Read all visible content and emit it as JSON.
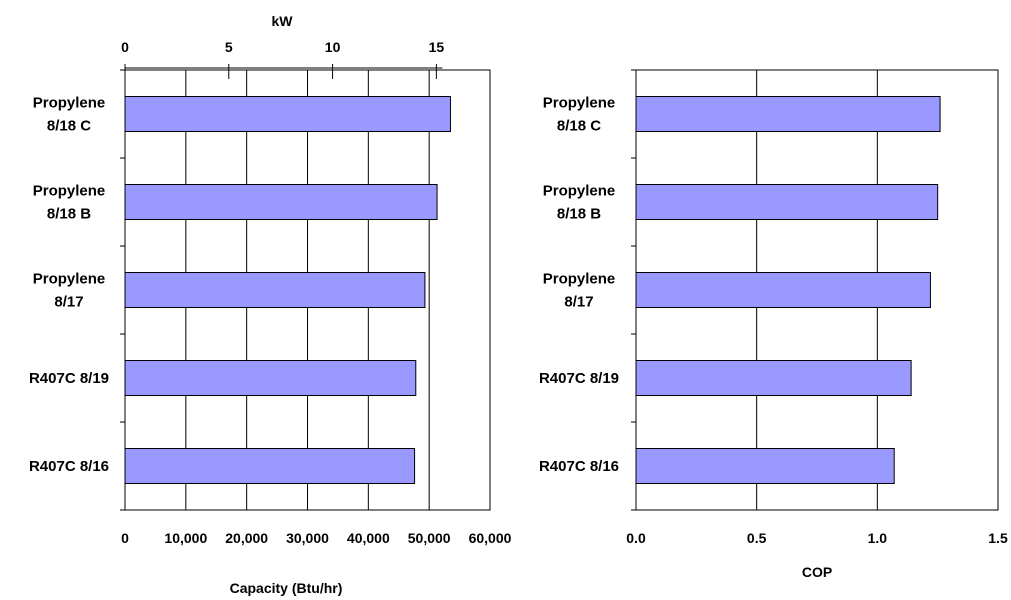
{
  "chart_data": [
    {
      "type": "bar",
      "orientation": "horizontal",
      "categories": [
        [
          "Propylene",
          "8/18 C"
        ],
        [
          "Propylene",
          "8/18 B"
        ],
        [
          "Propylene",
          "8/17"
        ],
        [
          "R407C 8/19"
        ],
        [
          "R407C 8/16"
        ]
      ],
      "values": [
        53500,
        51300,
        49300,
        47800,
        47600
      ],
      "xlabel": "Capacity (Btu/hr)",
      "xlim": [
        0,
        60000
      ],
      "xticks": [
        "0",
        "10,000",
        "20,000",
        "30,000",
        "40,000",
        "50,000",
        "60,000"
      ],
      "xtick_values": [
        0,
        10000,
        20000,
        30000,
        40000,
        50000,
        60000
      ],
      "secondary_axis": {
        "label": "kW",
        "position": "top",
        "ticks": [
          "0",
          "5",
          "10",
          "15"
        ],
        "tick_values": [
          0,
          5,
          10,
          15
        ],
        "btu_per_kw": 3412.14
      },
      "grid": "vertical",
      "bar_color": "#9999ff"
    },
    {
      "type": "bar",
      "orientation": "horizontal",
      "categories": [
        [
          "Propylene",
          "8/18 C"
        ],
        [
          "Propylene",
          "8/18 B"
        ],
        [
          "Propylene",
          "8/17"
        ],
        [
          "R407C 8/19"
        ],
        [
          "R407C 8/16"
        ]
      ],
      "values": [
        1.26,
        1.25,
        1.22,
        1.14,
        1.07
      ],
      "xlabel": "COP",
      "xlim": [
        0,
        1.5
      ],
      "xticks": [
        "0.0",
        "0.5",
        "1.0",
        "1.5"
      ],
      "xtick_values": [
        0,
        0.5,
        1.0,
        1.5
      ],
      "grid": "vertical",
      "bar_color": "#9999ff"
    }
  ]
}
